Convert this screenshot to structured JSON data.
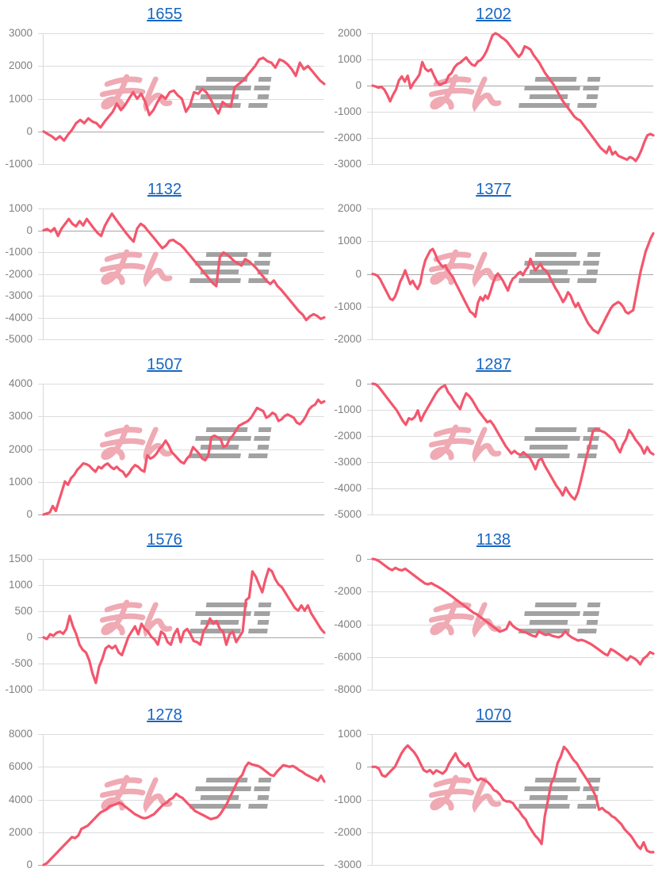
{
  "style": {
    "line_color": "#f3566d",
    "title_color": "#1766c2",
    "label_color": "#808080",
    "gridline_color": "#dcdcdc",
    "zero_line_color": "#a6a6a6",
    "axis_line_color": "#d9d9d9",
    "watermark_pink": "#efaab4",
    "watermark_gray": "#a2a2a2"
  },
  "watermark": {
    "text": "みんレポ",
    "pink_part": "みん",
    "gray_part": "レポ"
  },
  "chart_data": [
    {
      "type": "line",
      "title": "1655",
      "ymin": -1000,
      "ymax": 3000,
      "ticks": [
        3000,
        2000,
        1000,
        0,
        -1000
      ],
      "grid": true,
      "legend": "none",
      "values": [
        0,
        -80,
        -150,
        -250,
        -150,
        -280,
        -100,
        50,
        250,
        350,
        250,
        400,
        300,
        250,
        120,
        300,
        450,
        600,
        850,
        650,
        800,
        1000,
        1200,
        1000,
        1150,
        900,
        500,
        650,
        900,
        1100,
        1000,
        1200,
        1250,
        1100,
        1000,
        600,
        800,
        1200,
        1150,
        1300,
        1200,
        1000,
        750,
        550,
        900,
        800,
        750,
        1350,
        1450,
        1550,
        1700,
        1850,
        2000,
        2200,
        2250,
        2150,
        2100,
        1950,
        2200,
        2150,
        2050,
        1900,
        1700,
        2100,
        1900,
        2000,
        1850,
        1700,
        1550,
        1450
      ]
    },
    {
      "type": "line",
      "title": "1202",
      "ymin": -3000,
      "ymax": 2000,
      "ticks": [
        2000,
        1000,
        0,
        -1000,
        -2000,
        -3000
      ],
      "grid": true,
      "legend": "none",
      "values": [
        0,
        -30,
        -80,
        -50,
        -150,
        -350,
        -600,
        -350,
        -150,
        200,
        350,
        150,
        380,
        -100,
        100,
        250,
        420,
        900,
        650,
        550,
        620,
        380,
        150,
        30,
        80,
        120,
        380,
        480,
        700,
        820,
        880,
        980,
        1080,
        920,
        800,
        760,
        920,
        980,
        1120,
        1320,
        1620,
        1920,
        2000,
        1950,
        1850,
        1780,
        1680,
        1530,
        1380,
        1230,
        1100,
        1230,
        1500,
        1450,
        1380,
        1180,
        1030,
        880,
        680,
        480,
        330,
        180,
        30,
        -180,
        -380,
        -580,
        -730,
        -880,
        -1030,
        -1180,
        -1280,
        -1330,
        -1480,
        -1630,
        -1780,
        -1930,
        -2080,
        -2230,
        -2380,
        -2480,
        -2580,
        -2330,
        -2630,
        -2530,
        -2680,
        -2730,
        -2780,
        -2830,
        -2730,
        -2780,
        -2880,
        -2700,
        -2450,
        -2150,
        -1900,
        -1850,
        -1900
      ]
    },
    {
      "type": "line",
      "title": "1132",
      "ymin": -5000,
      "ymax": 1000,
      "ticks": [
        1000,
        0,
        -1000,
        -2000,
        -3000,
        -4000,
        -5000
      ],
      "grid": true,
      "legend": "none",
      "values": [
        0,
        60,
        -60,
        100,
        -260,
        80,
        300,
        520,
        300,
        180,
        420,
        220,
        520,
        300,
        80,
        -120,
        -260,
        200,
        500,
        760,
        520,
        300,
        80,
        -140,
        -340,
        -520,
        80,
        300,
        180,
        -20,
        -220,
        -420,
        -620,
        -820,
        -700,
        -480,
        -440,
        -560,
        -660,
        -820,
        -1020,
        -1220,
        -1420,
        -1620,
        -1820,
        -2020,
        -2220,
        -2420,
        -2560,
        -1220,
        -1020,
        -1120,
        -1260,
        -1420,
        -1520,
        -1620,
        -1320,
        -1420,
        -1560,
        -1720,
        -1920,
        -2120,
        -2320,
        -2460,
        -2300,
        -2560,
        -2720,
        -2920,
        -3120,
        -3320,
        -3520,
        -3720,
        -3870,
        -4120,
        -3950,
        -3850,
        -3920,
        -4060,
        -4000
      ]
    },
    {
      "type": "line",
      "title": "1377",
      "ymin": -2000,
      "ymax": 2000,
      "ticks": [
        2000,
        1000,
        0,
        -1000,
        -2000
      ],
      "grid": true,
      "legend": "none",
      "values": [
        0,
        -20,
        -60,
        -160,
        -310,
        -460,
        -610,
        -760,
        -800,
        -690,
        -490,
        -240,
        -90,
        110,
        -110,
        -310,
        -210,
        -360,
        -460,
        -290,
        110,
        410,
        560,
        710,
        760,
        610,
        410,
        310,
        210,
        260,
        110,
        10,
        -90,
        -260,
        -410,
        -560,
        -710,
        -860,
        -1010,
        -1160,
        -1210,
        -1310,
        -890,
        -710,
        -810,
        -660,
        -760,
        -540,
        -290,
        -90,
        10,
        -90,
        -210,
        -360,
        -510,
        -290,
        -140,
        -90,
        10,
        60,
        -40,
        110,
        210,
        460,
        260,
        110,
        210,
        310,
        160,
        110,
        10,
        -140,
        -290,
        -440,
        -560,
        -710,
        -860,
        -740,
        -560,
        -660,
        -860,
        -1010,
        -890,
        -1060,
        -1210,
        -1360,
        -1510,
        -1610,
        -1710,
        -1760,
        -1810,
        -1660,
        -1510,
        -1360,
        -1210,
        -1060,
        -960,
        -910,
        -860,
        -910,
        -1010,
        -1160,
        -1210,
        -1160,
        -1110,
        -710,
        -310,
        90,
        390,
        690,
        890,
        1090,
        1240
      ]
    },
    {
      "type": "line",
      "title": "1507",
      "ymin": 0,
      "ymax": 4000,
      "ticks": [
        4000,
        3000,
        2000,
        1000,
        0
      ],
      "grid": true,
      "legend": "none",
      "values": [
        0,
        30,
        60,
        260,
        110,
        410,
        710,
        1010,
        910,
        1110,
        1210,
        1360,
        1460,
        1560,
        1540,
        1490,
        1390,
        1310,
        1460,
        1410,
        1510,
        1560,
        1460,
        1390,
        1460,
        1360,
        1310,
        1160,
        1260,
        1410,
        1510,
        1460,
        1360,
        1310,
        1810,
        1710,
        1760,
        1860,
        2010,
        2110,
        2260,
        2110,
        1910,
        1810,
        1710,
        1610,
        1560,
        1710,
        1810,
        2060,
        1960,
        1860,
        1710,
        1660,
        1810,
        2360,
        2410,
        2360,
        2310,
        2060,
        2110,
        2310,
        2410,
        2560,
        2710,
        2760,
        2810,
        2860,
        2960,
        3110,
        3260,
        3210,
        3160,
        2960,
        3010,
        3110,
        3060,
        2860,
        2910,
        3010,
        3060,
        3010,
        2960,
        2810,
        2760,
        2860,
        3010,
        3210,
        3310,
        3360,
        3510,
        3410,
        3460
      ]
    },
    {
      "type": "line",
      "title": "1287",
      "ymin": -5000,
      "ymax": 0,
      "ticks": [
        0,
        -1000,
        -2000,
        -3000,
        -4000,
        -5000
      ],
      "grid": true,
      "legend": "none",
      "values": [
        0,
        -20,
        -120,
        -270,
        -420,
        -570,
        -720,
        -870,
        -1020,
        -1220,
        -1420,
        -1570,
        -1320,
        -1370,
        -1270,
        -1020,
        -1420,
        -1170,
        -970,
        -770,
        -570,
        -370,
        -220,
        -120,
        -70,
        -320,
        -470,
        -670,
        -820,
        -970,
        -620,
        -370,
        -470,
        -620,
        -820,
        -1020,
        -1170,
        -1320,
        -1470,
        -1420,
        -1570,
        -1770,
        -1970,
        -2170,
        -2370,
        -2520,
        -2670,
        -2570,
        -2670,
        -2720,
        -2620,
        -2720,
        -2820,
        -3020,
        -3270,
        -2920,
        -2870,
        -3120,
        -3320,
        -3520,
        -3720,
        -3920,
        -4070,
        -4270,
        -3970,
        -4170,
        -4320,
        -4420,
        -4170,
        -3720,
        -3220,
        -2720,
        -2320,
        -1820,
        -1720,
        -1770,
        -1820,
        -1870,
        -1970,
        -2070,
        -2170,
        -2420,
        -2620,
        -2320,
        -2120,
        -1770,
        -1920,
        -2120,
        -2270,
        -2420,
        -2670,
        -2420,
        -2620,
        -2700
      ]
    },
    {
      "type": "line",
      "title": "1576",
      "ymin": -1000,
      "ymax": 1500,
      "ticks": [
        1500,
        1000,
        500,
        0,
        -500,
        -1000
      ],
      "grid": true,
      "legend": "none",
      "values": [
        0,
        -30,
        60,
        30,
        90,
        110,
        70,
        160,
        410,
        210,
        60,
        -140,
        -240,
        -290,
        -440,
        -690,
        -870,
        -560,
        -410,
        -210,
        -160,
        -210,
        -160,
        -290,
        -340,
        -160,
        10,
        110,
        210,
        60,
        260,
        160,
        110,
        10,
        -40,
        -140,
        110,
        60,
        -90,
        -140,
        60,
        160,
        -90,
        110,
        160,
        60,
        -70,
        -90,
        -140,
        110,
        210,
        360,
        260,
        310,
        160,
        110,
        -140,
        60,
        110,
        -90,
        10,
        110,
        710,
        760,
        1260,
        1160,
        1010,
        860,
        1110,
        1310,
        1260,
        1110,
        1010,
        960,
        860,
        760,
        660,
        560,
        510,
        610,
        510,
        610,
        460,
        360,
        260,
        160,
        90
      ]
    },
    {
      "type": "line",
      "title": "1138",
      "ymin": -8000,
      "ymax": 0,
      "ticks": [
        0,
        -2000,
        -4000,
        -6000,
        -8000
      ],
      "grid": true,
      "legend": "none",
      "values": [
        0,
        -40,
        -140,
        -290,
        -440,
        -590,
        -690,
        -550,
        -650,
        -700,
        -600,
        -750,
        -900,
        -1050,
        -1200,
        -1350,
        -1500,
        -1550,
        -1480,
        -1600,
        -1700,
        -1820,
        -1960,
        -2100,
        -2250,
        -2400,
        -2550,
        -2700,
        -2850,
        -3000,
        -3150,
        -3300,
        -3400,
        -3550,
        -3700,
        -3850,
        -4000,
        -4150,
        -4300,
        -4450,
        -4380,
        -4280,
        -3850,
        -4100,
        -4250,
        -4350,
        -4450,
        -4500,
        -4600,
        -4700,
        -4750,
        -4420,
        -4560,
        -4650,
        -4600,
        -4700,
        -4750,
        -4800,
        -4700,
        -4420,
        -4650,
        -4800,
        -4900,
        -5000,
        -4950,
        -5020,
        -5120,
        -5220,
        -5360,
        -5500,
        -5650,
        -5800,
        -5900,
        -5520,
        -5620,
        -5760,
        -5900,
        -6050,
        -6200,
        -5960,
        -6060,
        -6200,
        -6450,
        -6100,
        -5950,
        -5700,
        -5800
      ]
    },
    {
      "type": "line",
      "title": "1278",
      "ymin": 0,
      "ymax": 8000,
      "ticks": [
        8000,
        6000,
        4000,
        2000,
        0
      ],
      "grid": true,
      "legend": "none",
      "values": [
        0,
        100,
        300,
        500,
        700,
        900,
        1100,
        1300,
        1500,
        1700,
        1640,
        1800,
        2200,
        2300,
        2400,
        2600,
        2800,
        3000,
        3200,
        3300,
        3400,
        3600,
        3650,
        3720,
        3800,
        3700,
        3550,
        3400,
        3250,
        3100,
        3000,
        2900,
        2850,
        2900,
        3000,
        3100,
        3300,
        3500,
        3700,
        3800,
        4000,
        4100,
        4350,
        4200,
        4100,
        3900,
        3700,
        3500,
        3300,
        3200,
        3100,
        3000,
        2900,
        2800,
        2850,
        2900,
        3100,
        3400,
        3700,
        4100,
        4500,
        4900,
        5300,
        5500,
        6000,
        6250,
        6150,
        6100,
        6050,
        5950,
        5800,
        5650,
        5500,
        5450,
        5700,
        5900,
        6100,
        6050,
        6000,
        6050,
        5950,
        5800,
        5700,
        5550,
        5450,
        5350,
        5250,
        5150,
        5450,
        5100
      ]
    },
    {
      "type": "line",
      "title": "1070",
      "ymin": -3000,
      "ymax": 1000,
      "ticks": [
        1000,
        0,
        -1000,
        -2000,
        -3000
      ],
      "grid": true,
      "legend": "none",
      "values": [
        0,
        0,
        -60,
        -260,
        -300,
        -200,
        -100,
        0,
        200,
        400,
        550,
        650,
        550,
        450,
        300,
        100,
        -100,
        -160,
        -100,
        -210,
        -110,
        -160,
        -210,
        -110,
        100,
        260,
        410,
        200,
        100,
        0,
        110,
        -110,
        -310,
        -410,
        -360,
        -410,
        -460,
        -560,
        -710,
        -760,
        -860,
        -1010,
        -1060,
        -1060,
        -1110,
        -1260,
        -1360,
        -1510,
        -1610,
        -1810,
        -1960,
        -2110,
        -2210,
        -2360,
        -1510,
        -1010,
        -510,
        -310,
        110,
        310,
        610,
        510,
        360,
        210,
        110,
        -60,
        -210,
        -360,
        -510,
        -710,
        -910,
        -1310,
        -1260,
        -1360,
        -1410,
        -1510,
        -1560,
        -1660,
        -1760,
        -1910,
        -2010,
        -2110,
        -2260,
        -2410,
        -2510,
        -2310,
        -2560,
        -2610,
        -2610
      ]
    }
  ]
}
